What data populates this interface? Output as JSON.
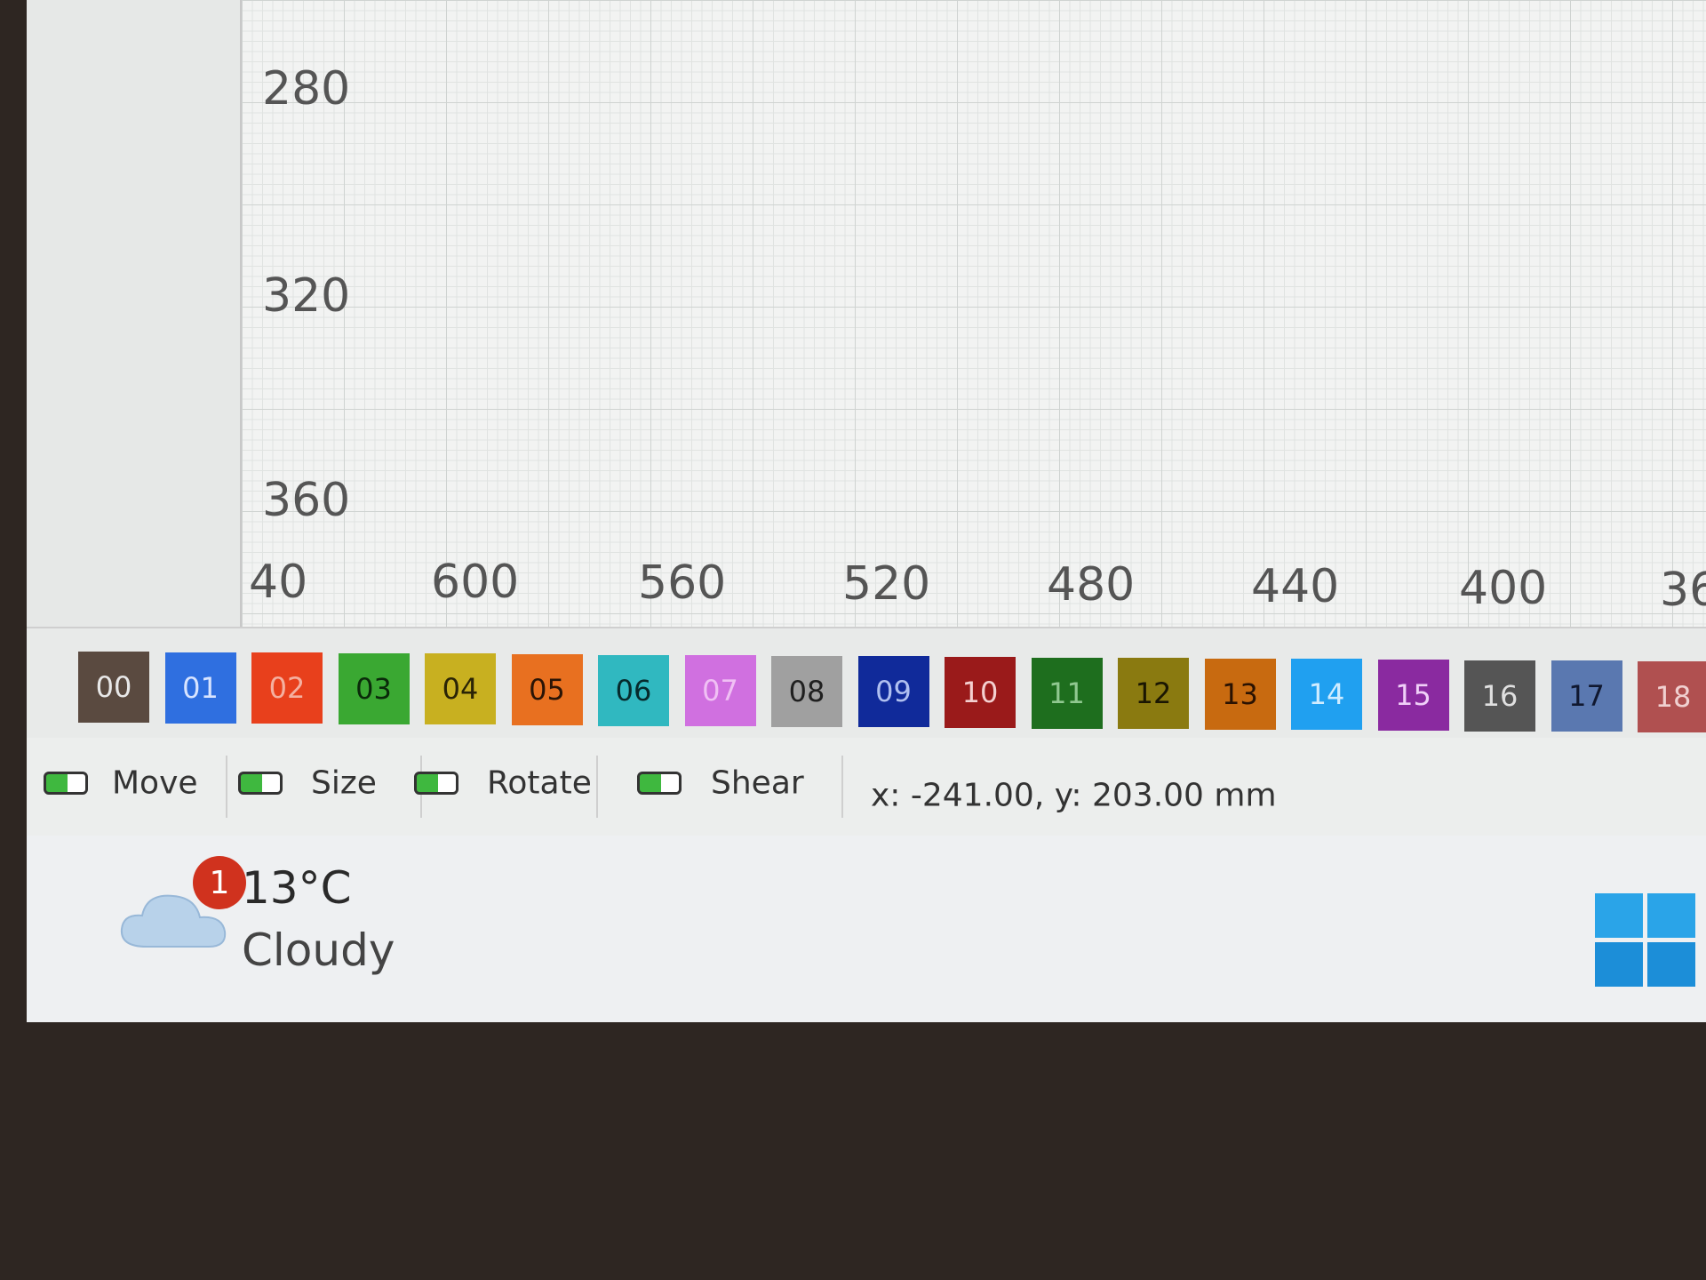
{
  "ruler": {
    "vertical_labels": [
      "280",
      "320",
      "360"
    ],
    "horizontal_labels": [
      "40",
      "600",
      "560",
      "520",
      "480",
      "440",
      "400",
      "36"
    ]
  },
  "palette": [
    {
      "label": "00",
      "color": "#5a4a40",
      "text_color": "#e8e8e8"
    },
    {
      "label": "01",
      "color": "#2f6fe0",
      "text_color": "#d8e4ff"
    },
    {
      "label": "02",
      "color": "#e8401c",
      "text_color": "#f4b0a0"
    },
    {
      "label": "03",
      "color": "#3aa832",
      "text_color": "#0a2a0a"
    },
    {
      "label": "04",
      "color": "#c8b020",
      "text_color": "#2a2406"
    },
    {
      "label": "05",
      "color": "#e87020",
      "text_color": "#2a1406"
    },
    {
      "label": "06",
      "color": "#30b8c0",
      "text_color": "#062a2c"
    },
    {
      "label": "07",
      "color": "#d070e0",
      "text_color": "#f0c0f4"
    },
    {
      "label": "08",
      "color": "#a0a0a0",
      "text_color": "#202020"
    },
    {
      "label": "09",
      "color": "#102a9a",
      "text_color": "#b0c0f0"
    },
    {
      "label": "10",
      "color": "#9a1a1a",
      "text_color": "#f4d0d0"
    },
    {
      "label": "11",
      "color": "#1e6e1e",
      "text_color": "#90c890"
    },
    {
      "label": "12",
      "color": "#8a7a10",
      "text_color": "#1a1602"
    },
    {
      "label": "13",
      "color": "#c86a10",
      "text_color": "#2a1202"
    },
    {
      "label": "14",
      "color": "#20a0f0",
      "text_color": "#d0ecff"
    },
    {
      "label": "15",
      "color": "#8a2aa0",
      "text_color": "#f0d0f8"
    },
    {
      "label": "16",
      "color": "#555555",
      "text_color": "#e0e0e0"
    },
    {
      "label": "17",
      "color": "#5a78b0",
      "text_color": "#101830"
    },
    {
      "label": "18",
      "color": "#b05050",
      "text_color": "#f0d0d0"
    }
  ],
  "toolbar": {
    "toggles": [
      "Move",
      "Size",
      "Rotate",
      "Shear"
    ],
    "coordinates": "x: -241.00, y: 203.00 mm"
  },
  "taskbar": {
    "weather": {
      "badge": "1",
      "temperature": "13°C",
      "condition": "Cloudy"
    }
  }
}
